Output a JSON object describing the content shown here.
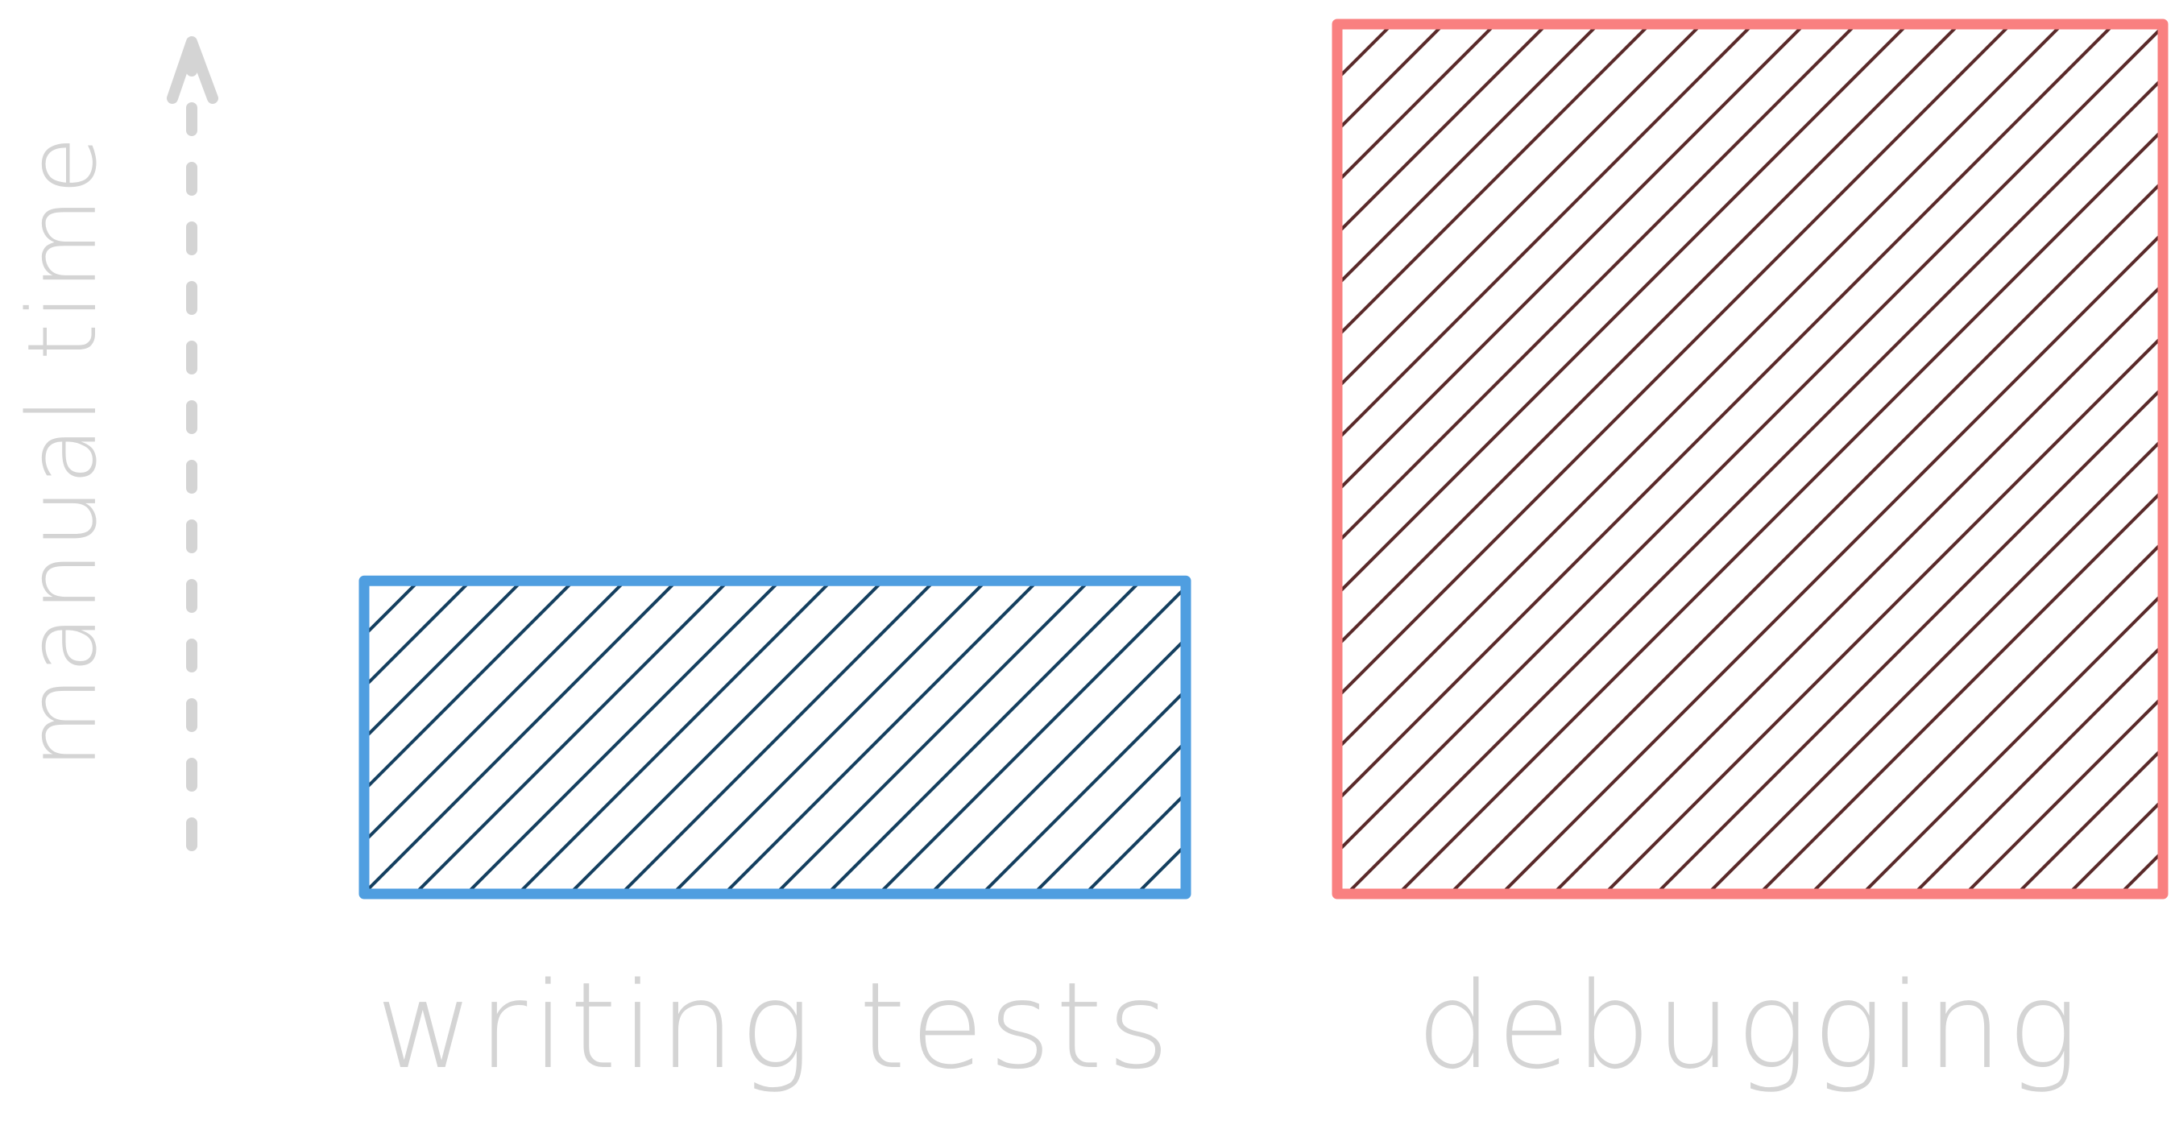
{
  "chart_data": {
    "type": "bar",
    "title": "",
    "xlabel": "",
    "ylabel": "manual time",
    "categories": [
      "writing tests",
      "debugging"
    ],
    "values": [
      0.36,
      1.0
    ],
    "ylim": [
      0,
      1
    ],
    "grid": false,
    "axis_ticks": false,
    "colors": {
      "bar_outlines": [
        "#4f9ee0",
        "#f98080"
      ],
      "bar_hatch": [
        "#143f5f",
        "#5a2a2a"
      ],
      "labels": "#d4d4d4",
      "axis": "#d4d4d4"
    },
    "style": "hand-drawn, diagonal hatch fill, dashed y-axis arrow"
  }
}
